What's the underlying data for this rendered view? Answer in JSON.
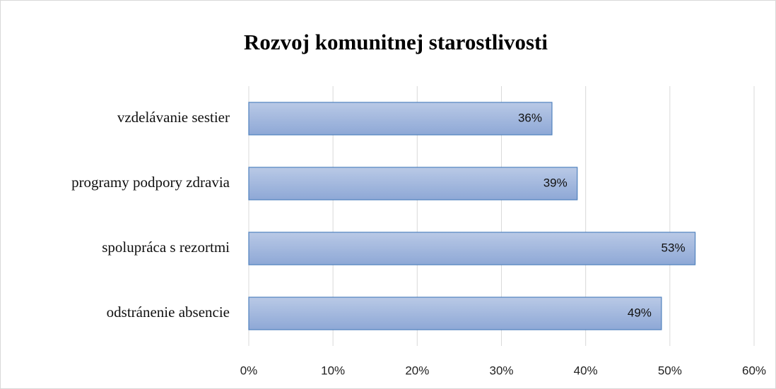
{
  "chart_data": {
    "type": "bar",
    "orientation": "horizontal",
    "title": "Rozvoj komunitnej starostlivosti",
    "categories": [
      "vzdelávanie sestier",
      "programy podpory zdravia",
      "spolupráca s rezortmi",
      "odstránenie absencie"
    ],
    "values": [
      36,
      39,
      53,
      49
    ],
    "value_labels": [
      "36%",
      "39%",
      "53%",
      "49%"
    ],
    "color": "#8eaadb",
    "xlim": [
      0,
      60
    ],
    "xticks": [
      {
        "value": 0,
        "label": "0%"
      },
      {
        "value": 10,
        "label": "10%"
      },
      {
        "value": 20,
        "label": "20%"
      },
      {
        "value": 30,
        "label": "30%"
      },
      {
        "value": 40,
        "label": "40%"
      },
      {
        "value": 50,
        "label": "50%"
      },
      {
        "value": 60,
        "label": "60%"
      }
    ],
    "grid": true
  }
}
